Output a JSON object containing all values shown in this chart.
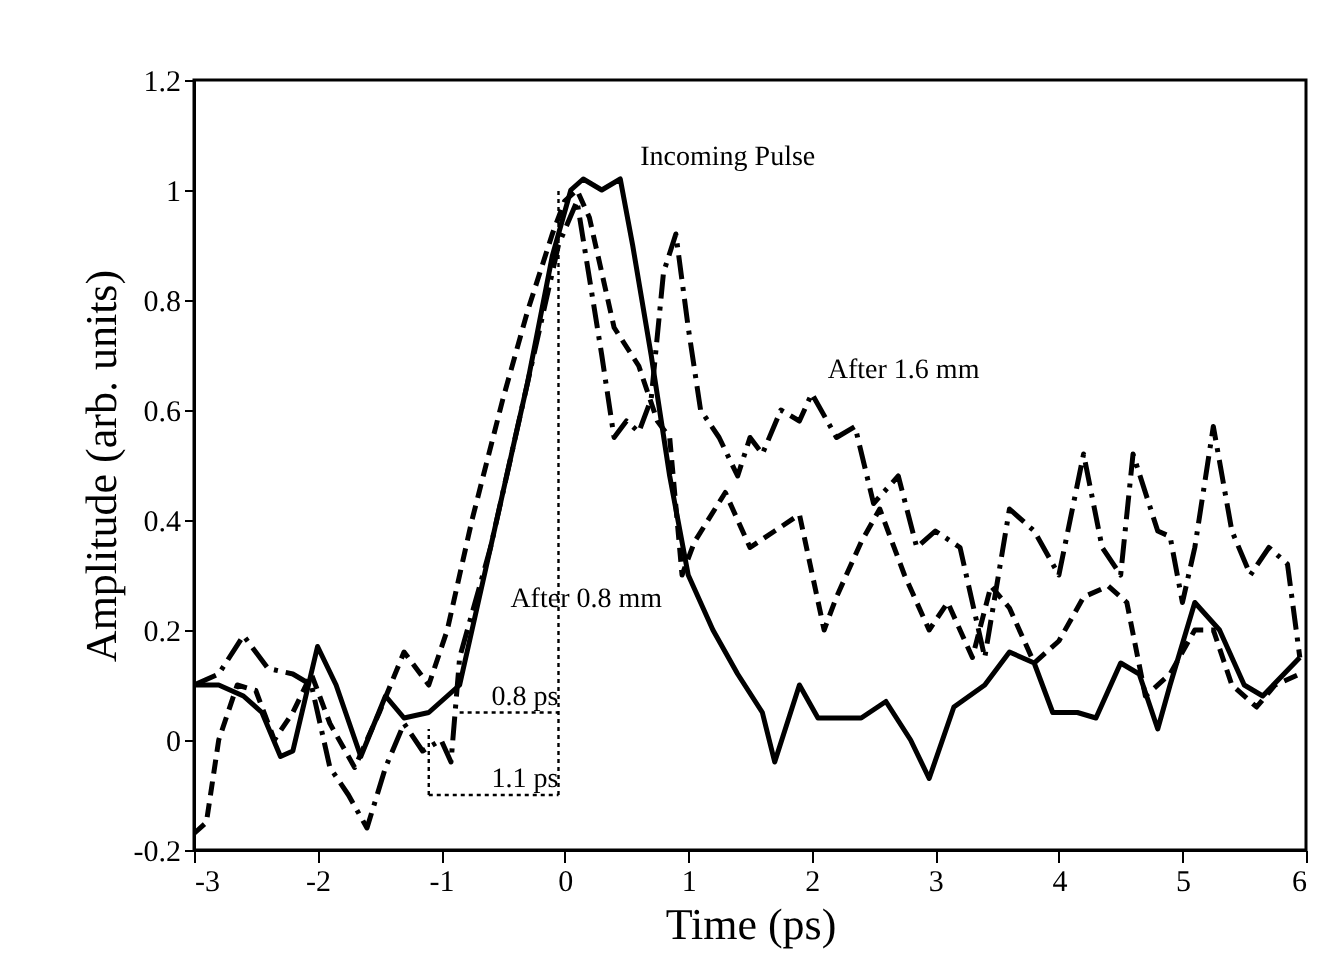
{
  "chart_data": {
    "type": "line",
    "xlabel": "Time (ps)",
    "ylabel": "Amplitude (arb. units)",
    "xlim": [
      -3,
      6
    ],
    "xticks": [
      -3,
      -2,
      -1,
      0,
      1,
      2,
      3,
      4,
      5,
      6
    ],
    "ylim": [
      -0.2,
      1.2
    ],
    "yticks": [
      -0.2,
      0,
      0.2,
      0.4,
      0.6,
      0.8,
      1,
      1.2
    ],
    "grid": false,
    "marker": "none",
    "series": [
      {
        "name": "Incoming Pulse",
        "color": "#000000",
        "line_style": "solid",
        "x": [
          -3,
          -2.8,
          -2.6,
          -2.45,
          -2.3,
          -2.2,
          -2.0,
          -1.85,
          -1.65,
          -1.45,
          -1.3,
          -1.1,
          -0.95,
          -0.85,
          -0.7,
          -0.5,
          -0.3,
          -0.1,
          0.05,
          0.15,
          0.3,
          0.45,
          0.55,
          0.7,
          0.85,
          1.0,
          1.2,
          1.4,
          1.6,
          1.7,
          1.9,
          2.05,
          2.4,
          2.6,
          2.8,
          2.95,
          3.15,
          3.4,
          3.6,
          3.8,
          3.95,
          4.15,
          4.3,
          4.5,
          4.65,
          4.8,
          4.9,
          5.1,
          5.3,
          5.5,
          5.65,
          5.95
        ],
        "values": [
          0.1,
          0.1,
          0.08,
          0.05,
          -0.03,
          -0.02,
          0.17,
          0.1,
          -0.03,
          0.08,
          0.04,
          0.05,
          0.08,
          0.1,
          0.25,
          0.45,
          0.65,
          0.88,
          1.0,
          1.02,
          1.0,
          1.02,
          0.9,
          0.7,
          0.48,
          0.3,
          0.2,
          0.12,
          0.05,
          -0.04,
          0.1,
          0.04,
          0.04,
          0.07,
          0.0,
          -0.07,
          0.06,
          0.1,
          0.16,
          0.14,
          0.05,
          0.05,
          0.04,
          0.14,
          0.12,
          0.02,
          0.1,
          0.25,
          0.2,
          0.1,
          0.08,
          0.15
        ]
      },
      {
        "name": "After 0.8 mm",
        "color": "#000000",
        "line_style": "dashed",
        "x": [
          -3,
          -2.9,
          -2.8,
          -2.65,
          -2.5,
          -2.35,
          -2.2,
          -2.05,
          -1.9,
          -1.7,
          -1.5,
          -1.3,
          -1.1,
          -0.95,
          -0.75,
          -0.5,
          -0.3,
          -0.1,
          0.0,
          0.1,
          0.2,
          0.4,
          0.6,
          0.75,
          0.85,
          0.95,
          1.05,
          1.3,
          1.5,
          1.7,
          1.9,
          2.1,
          2.2,
          2.4,
          2.55,
          2.75,
          2.95,
          3.1,
          3.3,
          3.45,
          3.6,
          3.8,
          4.0,
          4.2,
          4.4,
          4.55,
          4.7,
          4.9,
          5.1,
          5.25,
          5.4,
          5.6,
          5.75,
          5.95
        ],
        "values": [
          -0.17,
          -0.15,
          0.0,
          0.1,
          0.09,
          0.0,
          0.05,
          0.12,
          0.03,
          -0.05,
          0.05,
          0.16,
          0.1,
          0.2,
          0.4,
          0.62,
          0.78,
          0.92,
          0.98,
          1.0,
          0.95,
          0.75,
          0.68,
          0.58,
          0.55,
          0.3,
          0.36,
          0.45,
          0.35,
          0.38,
          0.41,
          0.2,
          0.26,
          0.36,
          0.42,
          0.3,
          0.2,
          0.25,
          0.15,
          0.28,
          0.24,
          0.14,
          0.18,
          0.26,
          0.28,
          0.25,
          0.08,
          0.12,
          0.2,
          0.2,
          0.1,
          0.06,
          0.1,
          0.12
        ]
      },
      {
        "name": "After 1.6 mm",
        "color": "#000000",
        "line_style": "dashdot",
        "x": [
          -3,
          -2.8,
          -2.6,
          -2.4,
          -2.2,
          -2.05,
          -1.9,
          -1.75,
          -1.6,
          -1.45,
          -1.3,
          -1.15,
          -1.0,
          -0.92,
          -0.85,
          -0.6,
          -0.4,
          -0.2,
          -0.05,
          0.1,
          0.3,
          0.4,
          0.5,
          0.6,
          0.7,
          0.8,
          0.9,
          1.0,
          1.1,
          1.25,
          1.4,
          1.5,
          1.6,
          1.75,
          1.9,
          2.0,
          2.2,
          2.35,
          2.5,
          2.7,
          2.85,
          3.0,
          3.2,
          3.4,
          3.6,
          3.8,
          4.0,
          4.2,
          4.35,
          4.5,
          4.6,
          4.8,
          4.9,
          5.0,
          5.1,
          5.25,
          5.4,
          5.55,
          5.7,
          5.85,
          5.95
        ],
        "values": [
          0.1,
          0.12,
          0.19,
          0.13,
          0.12,
          0.1,
          -0.05,
          -0.1,
          -0.16,
          -0.05,
          0.03,
          -0.02,
          0.0,
          -0.04,
          0.15,
          0.35,
          0.55,
          0.75,
          0.9,
          0.98,
          0.7,
          0.55,
          0.58,
          0.56,
          0.62,
          0.85,
          0.92,
          0.75,
          0.6,
          0.55,
          0.48,
          0.55,
          0.52,
          0.6,
          0.58,
          0.63,
          0.55,
          0.57,
          0.43,
          0.48,
          0.35,
          0.38,
          0.35,
          0.15,
          0.42,
          0.38,
          0.3,
          0.52,
          0.35,
          0.3,
          0.52,
          0.38,
          0.37,
          0.25,
          0.35,
          0.57,
          0.38,
          0.3,
          0.35,
          0.32,
          0.15
        ]
      },
      {
        "color": "#000000",
        "line_style": "dotted",
        "x": [
          -0.05,
          -0.05
        ],
        "values": [
          -0.1,
          1.0
        ]
      },
      {
        "color": "#000000",
        "line_style": "dotted",
        "x": [
          -1.1,
          -1.1
        ],
        "values": [
          -0.1,
          0.02
        ]
      },
      {
        "color": "#000000",
        "line_style": "dotted",
        "x": [
          -0.85,
          -0.05
        ],
        "values": [
          0.05,
          0.05
        ]
      },
      {
        "color": "#000000",
        "line_style": "dotted",
        "x": [
          -1.1,
          -0.05
        ],
        "values": [
          -0.1,
          -0.1
        ]
      }
    ],
    "annotations": [
      "0.8 ps",
      "1.1 ps"
    ]
  }
}
